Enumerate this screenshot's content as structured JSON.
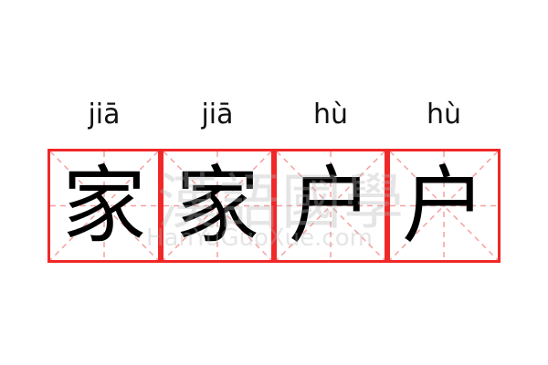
{
  "colors": {
    "grid_border": "#f02828",
    "guide_lines": "#f5a0a0",
    "text": "#000000"
  },
  "characters": [
    {
      "pinyin": "jiā",
      "char": "家"
    },
    {
      "pinyin": "jiā",
      "char": "家"
    },
    {
      "pinyin": "hù",
      "char": "户"
    },
    {
      "pinyin": "hù",
      "char": "户"
    }
  ],
  "watermark": {
    "title": "漢語國學",
    "url": "HanYuGuoXue.com"
  }
}
